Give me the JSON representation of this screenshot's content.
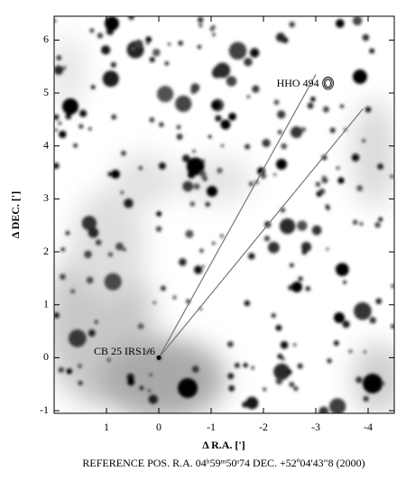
{
  "chart_data": {
    "type": "image",
    "xlabel": "Δ R.A. [']",
    "ylabel": "Δ DEC. [']",
    "footer": "REFERENCE POS.  R.A. 04ʰ59ᵐ50ˢ74  DEC.  +52º04'43\"8  (2000)",
    "xlim": [
      2,
      -4.5
    ],
    "xticks": [
      1,
      0,
      -1,
      -2,
      -3,
      -4
    ],
    "ylim": [
      -1.05,
      6.45
    ],
    "yticks": [
      -1,
      0,
      1,
      2,
      3,
      4,
      5,
      6
    ],
    "lines": [
      {
        "x": [
          0,
          -3.0
        ],
        "y": [
          0,
          5.35
        ],
        "color": "#777777"
      },
      {
        "x": [
          0,
          -3.9
        ],
        "y": [
          0,
          4.7
        ],
        "color": "#777777"
      }
    ],
    "annotations": [
      {
        "text": "HHO 494",
        "x": -3.2,
        "y": 5.15
      },
      {
        "text": "CB 25 IRS1/6",
        "x": 0.0,
        "y": 0.0
      }
    ]
  }
}
